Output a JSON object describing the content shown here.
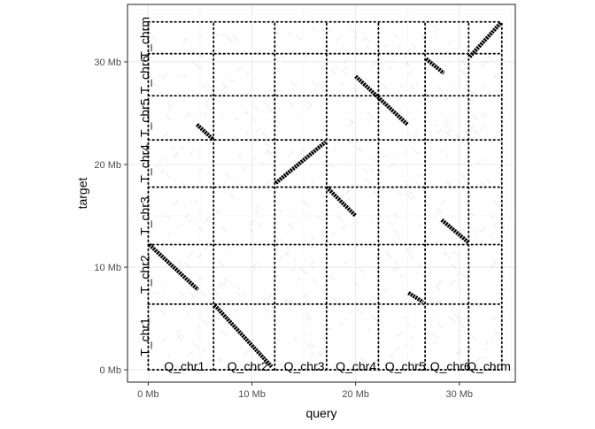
{
  "chart_data": {
    "type": "scatter",
    "title": "",
    "xlabel": "query",
    "ylabel": "target",
    "xlim": [
      -2.0,
      35.4
    ],
    "ylim": [
      -1.2,
      35.6
    ],
    "grid": true,
    "legend": "none",
    "x_ticks": [
      {
        "value": 0,
        "label": "0 Mb"
      },
      {
        "value": 10,
        "label": "10 Mb"
      },
      {
        "value": 20,
        "label": "20 Mb"
      },
      {
        "value": 30,
        "label": "30 Mb"
      }
    ],
    "y_ticks": [
      {
        "value": 0,
        "label": "0 Mb"
      },
      {
        "value": 10,
        "label": "10 Mb"
      },
      {
        "value": 20,
        "label": "20 Mb"
      },
      {
        "value": 30,
        "label": "30 Mb"
      }
    ],
    "query_chromosomes": [
      {
        "name": "Q_chr1",
        "start": 0,
        "end": 6.3
      },
      {
        "name": "Q_chr2",
        "start": 6.3,
        "end": 12.2
      },
      {
        "name": "Q_chr3",
        "start": 12.2,
        "end": 17.2
      },
      {
        "name": "Q_chr4",
        "start": 17.2,
        "end": 22.2
      },
      {
        "name": "Q_chr5",
        "start": 22.2,
        "end": 26.7
      },
      {
        "name": "Q_chr6",
        "start": 26.7,
        "end": 30.9
      },
      {
        "name": "Q_chrm",
        "start": 30.9,
        "end": 34.1
      }
    ],
    "target_chromosomes": [
      {
        "name": "T_chr1",
        "start": 0,
        "end": 6.4
      },
      {
        "name": "T_chr2",
        "start": 6.4,
        "end": 12.2
      },
      {
        "name": "T_chr3",
        "start": 12.2,
        "end": 17.8
      },
      {
        "name": "T_chr4",
        "start": 17.8,
        "end": 22.4
      },
      {
        "name": "T_chr5",
        "start": 22.4,
        "end": 26.7
      },
      {
        "name": "T_chr6",
        "start": 26.7,
        "end": 30.8
      },
      {
        "name": "T_chrm",
        "start": 30.8,
        "end": 33.9
      }
    ],
    "series": [
      {
        "values": [
          {
            "x1": 0.1,
            "y1": 12.2,
            "x2": 4.8,
            "y2": 7.8
          },
          {
            "x1": 4.7,
            "y1": 23.9,
            "x2": 6.2,
            "y2": 22.5
          },
          {
            "x1": 6.4,
            "y1": 6.3,
            "x2": 11.9,
            "y2": 0.3
          },
          {
            "x1": 12.3,
            "y1": 18.2,
            "x2": 17.1,
            "y2": 22.2
          },
          {
            "x1": 17.2,
            "y1": 17.8,
            "x2": 20.0,
            "y2": 15.0
          },
          {
            "x1": 20.0,
            "y1": 28.6,
            "x2": 25.0,
            "y2": 23.9
          },
          {
            "x1": 25.1,
            "y1": 7.5,
            "x2": 26.5,
            "y2": 6.6
          },
          {
            "x1": 26.8,
            "y1": 30.3,
            "x2": 28.5,
            "y2": 28.9
          },
          {
            "x1": 28.3,
            "y1": 14.6,
            "x2": 30.9,
            "y2": 12.4
          },
          {
            "x1": 31.0,
            "y1": 30.5,
            "x2": 34.0,
            "y2": 33.8
          }
        ]
      }
    ]
  }
}
